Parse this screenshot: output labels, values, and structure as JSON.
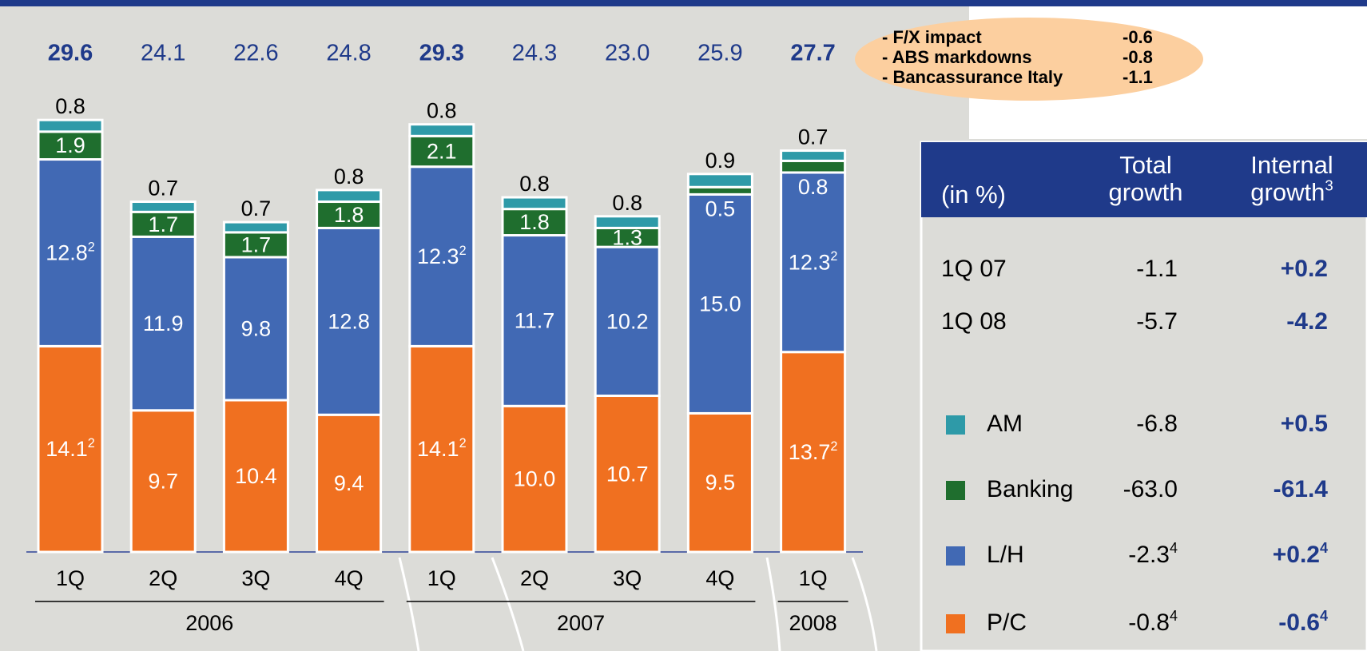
{
  "chart_data": {
    "type": "stacked_bar",
    "categories": [
      "1Q",
      "2Q",
      "3Q",
      "4Q",
      "1Q",
      "2Q",
      "3Q",
      "4Q",
      "1Q"
    ],
    "groups": [
      {
        "name": "2006",
        "size": 4
      },
      {
        "name": "2007",
        "size": 4
      },
      {
        "name": "2008",
        "size": 1
      }
    ],
    "totals": [
      29.6,
      24.1,
      22.6,
      24.8,
      29.3,
      24.3,
      23.0,
      25.9,
      27.7
    ],
    "totals_labels": [
      "29.6",
      "24.1",
      "22.6",
      "24.8",
      "29.3",
      "24.3",
      "23.0",
      "25.9",
      "27.7"
    ],
    "ylim": [
      0,
      30
    ],
    "series": [
      {
        "name": "P/C",
        "color": "#f07020",
        "values": [
          14.1,
          9.7,
          10.4,
          9.4,
          14.1,
          10.0,
          10.7,
          9.5,
          13.7
        ],
        "value_labels": [
          "14.1",
          "9.7",
          "10.4",
          "9.4",
          "14.1",
          "10.0",
          "10.7",
          "9.5",
          "13.7"
        ],
        "label_notes": [
          "2",
          null,
          null,
          null,
          "2",
          null,
          null,
          null,
          "2"
        ]
      },
      {
        "name": "L/H",
        "color": "#4169b4",
        "values": [
          12.8,
          11.9,
          9.8,
          12.8,
          12.3,
          11.7,
          10.2,
          15.0,
          12.3
        ],
        "value_labels": [
          "12.8",
          "11.9",
          "9.8",
          "12.8",
          "12.3",
          "11.7",
          "10.2",
          "15.0",
          "12.3"
        ],
        "label_notes": [
          "2",
          null,
          null,
          null,
          "2",
          null,
          null,
          null,
          "2"
        ]
      },
      {
        "name": "Banking",
        "color": "#1f6e2e",
        "values": [
          1.9,
          1.7,
          1.7,
          1.8,
          2.1,
          1.8,
          1.3,
          0.5,
          0.8
        ]
      },
      {
        "name": "AM",
        "color": "#2e9aa8",
        "values": [
          0.8,
          0.7,
          0.7,
          0.8,
          0.8,
          0.8,
          0.8,
          0.9,
          0.7
        ]
      }
    ]
  },
  "callout": {
    "rows": [
      [
        "- F/X impact",
        "-0.6"
      ],
      [
        "- ABS markdowns",
        "-0.8"
      ],
      [
        "- Bancassurance Italy",
        "-1.1"
      ]
    ]
  },
  "table": {
    "header": [
      {
        "lines": [
          "(in %)"
        ]
      },
      {
        "lines": [
          "Total",
          "growth"
        ]
      },
      {
        "lines": [
          "Internal",
          "growth"
        ],
        "note": "3"
      }
    ],
    "rows": [
      {
        "label": "1Q 07",
        "total": "-1.1",
        "internal": "+0.2"
      },
      {
        "label": "1Q 08",
        "total": "-5.7",
        "internal": "-4.2"
      },
      {
        "label": "AM",
        "color": "#2e9aa8",
        "total": "-6.8",
        "internal": "+0.5"
      },
      {
        "label": "Banking",
        "color": "#1f6e2e",
        "total": "-63.0",
        "internal": "-61.4"
      },
      {
        "label": "L/H",
        "color": "#4169b4",
        "total": "-2.3",
        "total_note": "4",
        "internal": "+0.2",
        "internal_note": "4"
      },
      {
        "label": "P/C",
        "color": "#f07020",
        "total": "-0.8",
        "total_note": "4",
        "internal": "-0.6",
        "internal_note": "4"
      }
    ]
  }
}
